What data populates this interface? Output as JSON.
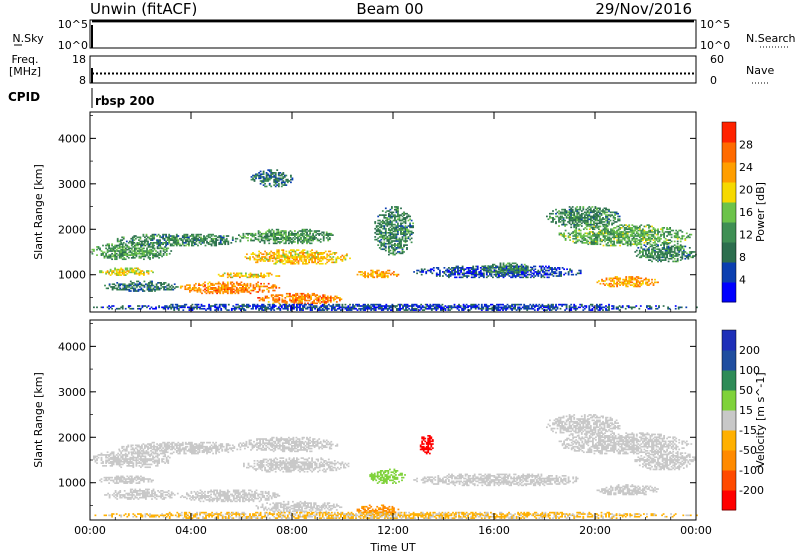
{
  "header": {
    "station": "Unwin (fitACF)",
    "beam": "Beam 00",
    "date": "29/Nov/2016"
  },
  "nsky_panel": {
    "left_label": "N.Sky",
    "right_label": "N.Search",
    "left_ticks": [
      "10^5",
      "10^0"
    ],
    "right_ticks": [
      "10^5",
      "10^0"
    ],
    "left_level": 0.95,
    "right_level": 0.93
  },
  "freq_panel": {
    "left_label_1": "Freq.",
    "left_label_2": "[MHz]",
    "right_label": "Nave",
    "left_ticks": [
      "18",
      "8"
    ],
    "right_ticks": [
      "60",
      "0"
    ],
    "left_level": 0.35,
    "right_level": 0.28
  },
  "cpid": {
    "label": "CPID",
    "program": "rbsp 200"
  },
  "chart_data": [
    {
      "type": "heatmap",
      "title": "",
      "xlabel": "Time UT",
      "ylabel": "Slant Range [km]",
      "x_ticks": [
        "00:00",
        "04:00",
        "08:00",
        "12:00",
        "16:00",
        "20:00",
        "00:00"
      ],
      "x_range_hours": [
        0,
        24
      ],
      "y_ticks": [
        1000,
        2000,
        3000,
        4000
      ],
      "ylim": [
        180,
        4580
      ],
      "colorbar": {
        "label": "Power [dB]",
        "ticks": [
          "28",
          "24",
          "20",
          "16",
          "12",
          "8",
          "4"
        ],
        "colors": [
          "#0000ff",
          "#0b3fb0",
          "#2c6e4e",
          "#3f8f54",
          "#6cc34a",
          "#f6d900",
          "#ff9e00",
          "#ff6a00",
          "#ff2200"
        ]
      },
      "blobs": [
        {
          "t0": 0.0,
          "t1": 3.2,
          "r0": 1300,
          "r1": 1700,
          "v": 14
        },
        {
          "t0": 0.3,
          "t1": 2.5,
          "r0": 950,
          "r1": 1150,
          "v": 22
        },
        {
          "t0": 0.5,
          "t1": 3.5,
          "r0": 600,
          "r1": 850,
          "v": 10
        },
        {
          "t0": 1.0,
          "t1": 6.0,
          "r0": 1600,
          "r1": 1900,
          "v": 12
        },
        {
          "t0": 3.5,
          "t1": 7.5,
          "r0": 550,
          "r1": 850,
          "v": 28
        },
        {
          "t0": 5.0,
          "t1": 7.5,
          "r0": 900,
          "r1": 1050,
          "v": 24
        },
        {
          "t0": 6.0,
          "t1": 10.3,
          "r0": 1200,
          "r1": 1550,
          "v": 24
        },
        {
          "t0": 5.8,
          "t1": 9.8,
          "r0": 1650,
          "r1": 2000,
          "v": 14
        },
        {
          "t0": 6.5,
          "t1": 10.0,
          "r0": 330,
          "r1": 580,
          "v": 28
        },
        {
          "t0": 10.5,
          "t1": 12.2,
          "r0": 900,
          "r1": 1100,
          "v": 26
        },
        {
          "t0": 11.2,
          "t1": 12.8,
          "r0": 1400,
          "r1": 2500,
          "v": 12
        },
        {
          "t0": 6.3,
          "t1": 8.0,
          "r0": 2900,
          "r1": 3300,
          "v": 10
        },
        {
          "t0": 12.8,
          "t1": 19.5,
          "r0": 900,
          "r1": 1200,
          "v": 6
        },
        {
          "t0": 15.5,
          "t1": 17.5,
          "r0": 1000,
          "r1": 1250,
          "v": 12
        },
        {
          "t0": 18.0,
          "t1": 21.0,
          "r0": 2000,
          "r1": 2500,
          "v": 12
        },
        {
          "t0": 18.5,
          "t1": 23.8,
          "r0": 1600,
          "r1": 2100,
          "v": 16
        },
        {
          "t0": 20.0,
          "t1": 22.5,
          "r0": 700,
          "r1": 950,
          "v": 26
        },
        {
          "t0": 21.5,
          "t1": 24.0,
          "r0": 1250,
          "r1": 1700,
          "v": 12
        },
        {
          "t0": 0.0,
          "t1": 24.0,
          "r0": 180,
          "r1": 360,
          "v": 6
        }
      ]
    },
    {
      "type": "heatmap",
      "title": "",
      "xlabel": "Time UT",
      "ylabel": "Slant Range [km]",
      "x_ticks": [
        "00:00",
        "04:00",
        "08:00",
        "12:00",
        "16:00",
        "20:00",
        "00:00"
      ],
      "x_range_hours": [
        0,
        24
      ],
      "y_ticks": [
        1000,
        2000,
        3000,
        4000
      ],
      "ylim": [
        180,
        4580
      ],
      "colorbar": {
        "label": "Velocity [m s^-1]",
        "ticks": [
          "200",
          "100",
          "50",
          "15",
          "-15",
          "-50",
          "-100",
          "-200"
        ],
        "colors": [
          "#ff0000",
          "#ff4a00",
          "#ff8a00",
          "#ffb000",
          "#c8c8c8",
          "#7fd23a",
          "#2e8b57",
          "#1f4e9f",
          "#1e2fb8"
        ]
      },
      "blobs": [
        {
          "t0": 0.0,
          "t1": 3.2,
          "r0": 1300,
          "r1": 1700,
          "v": 0
        },
        {
          "t0": 0.3,
          "t1": 2.5,
          "r0": 950,
          "r1": 1150,
          "v": 0
        },
        {
          "t0": 0.5,
          "t1": 3.5,
          "r0": 600,
          "r1": 850,
          "v": 0
        },
        {
          "t0": 1.0,
          "t1": 6.0,
          "r0": 1600,
          "r1": 1900,
          "v": 0
        },
        {
          "t0": 3.5,
          "t1": 7.5,
          "r0": 550,
          "r1": 850,
          "v": 0
        },
        {
          "t0": 6.0,
          "t1": 10.3,
          "r0": 1200,
          "r1": 1550,
          "v": 0
        },
        {
          "t0": 5.8,
          "t1": 9.8,
          "r0": 1650,
          "r1": 2000,
          "v": 0
        },
        {
          "t0": 6.5,
          "t1": 10.0,
          "r0": 330,
          "r1": 580,
          "v": 0
        },
        {
          "t0": 10.5,
          "t1": 12.2,
          "r0": 250,
          "r1": 500,
          "v": -60
        },
        {
          "t0": 11.0,
          "t1": 12.5,
          "r0": 950,
          "r1": 1300,
          "v": 30
        },
        {
          "t0": 13.0,
          "t1": 13.6,
          "r0": 1600,
          "r1": 2050,
          "v": -220
        },
        {
          "t0": 12.8,
          "t1": 19.5,
          "r0": 900,
          "r1": 1200,
          "v": 0
        },
        {
          "t0": 18.0,
          "t1": 21.0,
          "r0": 2000,
          "r1": 2500,
          "v": 0
        },
        {
          "t0": 18.5,
          "t1": 23.8,
          "r0": 1600,
          "r1": 2100,
          "v": 0
        },
        {
          "t0": 20.0,
          "t1": 22.5,
          "r0": 700,
          "r1": 950,
          "v": 0
        },
        {
          "t0": 21.5,
          "t1": 24.0,
          "r0": 1250,
          "r1": 1700,
          "v": 0
        },
        {
          "t0": 0.0,
          "t1": 24.0,
          "r0": 180,
          "r1": 360,
          "v": -20
        }
      ]
    }
  ]
}
